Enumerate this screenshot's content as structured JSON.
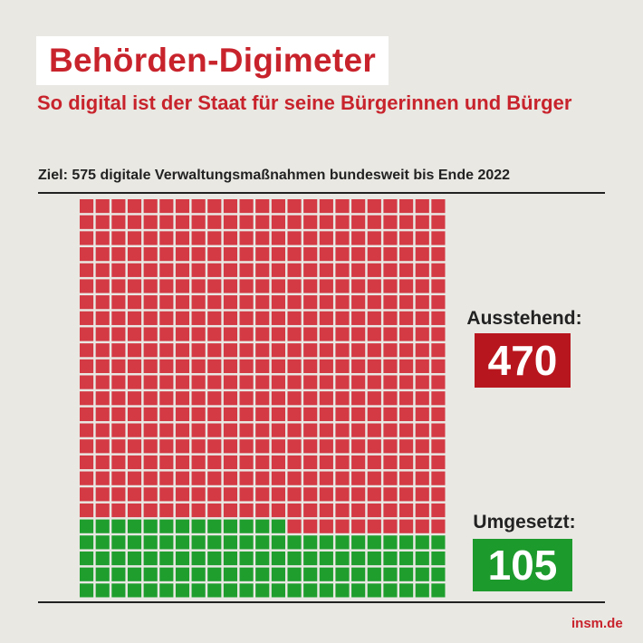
{
  "header": {
    "title": "Behörden-Digimeter",
    "subtitle": "So digital ist der Staat für seine Bürgerinnen und Bürger"
  },
  "goal_text": "Ziel: 575 digitale Verwaltungsmaßnahmen bundesweit bis Ende 2022",
  "pending": {
    "label": "Ausstehend:",
    "value": "470"
  },
  "done": {
    "label": "Umgesetzt:",
    "value": "105"
  },
  "brand": "insm.de",
  "colors": {
    "pending_cell": "#d33a44",
    "done_cell": "#1f9e2e",
    "pending_badge": "#b8161e",
    "done_badge": "#1d9a2c",
    "title": "#c8232c"
  },
  "chart_data": {
    "type": "waffle",
    "title": "Ziel: 575 digitale Verwaltungsmaßnahmen bundesweit bis Ende 2022",
    "total": 575,
    "columns": 23,
    "rows": 25,
    "series": [
      {
        "name": "Ausstehend",
        "value": 470,
        "color": "#d33a44"
      },
      {
        "name": "Umgesetzt",
        "value": 105,
        "color": "#1f9e2e"
      }
    ]
  }
}
